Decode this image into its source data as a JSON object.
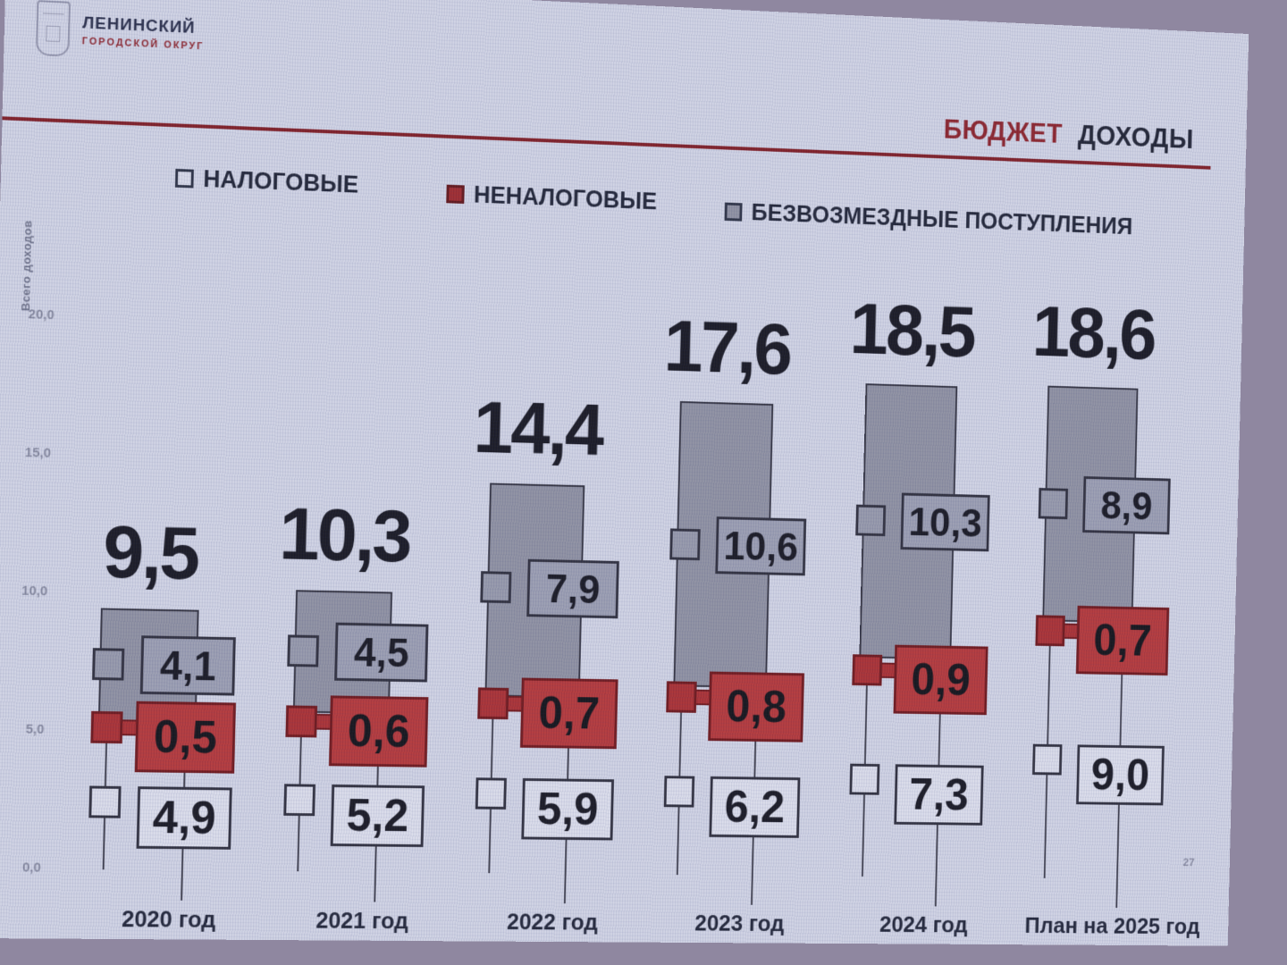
{
  "header": {
    "logo": {
      "line1": "ЛЕНИНСКИЙ",
      "line2": "ГОРОДСКОЙ ОКРУГ"
    },
    "title_accent": "БЮДЖЕТ",
    "title_main": "ДОХОДЫ"
  },
  "legend": {
    "items": [
      {
        "label": "НАЛОГОВЫЕ",
        "swatch": "white-outline-square"
      },
      {
        "label": "НЕНАЛОГОВЫЕ",
        "swatch": "red-square"
      },
      {
        "label": "БЕЗВОЗМЕЗДНЫЕ ПОСТУПЛЕНИЯ",
        "swatch": "gray-square"
      }
    ]
  },
  "y_axis": {
    "title": "Всего доходов",
    "ticks": [
      "20,0",
      "15,0",
      "10,0",
      "5,0",
      "0,0"
    ],
    "min": 0,
    "max": 20
  },
  "chart_data": {
    "type": "bar",
    "subtype": "stacked-column-with-value-callouts",
    "title": "БЮДЖЕТ ДОХОДЫ",
    "categories": [
      "2020 год",
      "2021 год",
      "2022 год",
      "2023 год",
      "2024 год",
      "План на 2025 год"
    ],
    "series": [
      {
        "name": "НАЛОГОВЫЕ",
        "color": "#dadcea",
        "values": [
          4.9,
          5.2,
          5.9,
          6.2,
          7.3,
          9.0
        ],
        "labels": [
          "4,9",
          "5,2",
          "5,9",
          "6,2",
          "7,3",
          "9,0"
        ]
      },
      {
        "name": "НЕНАЛОГОВЫЕ",
        "color": "#b23537",
        "values": [
          0.5,
          0.6,
          0.7,
          0.8,
          0.9,
          0.7
        ],
        "labels": [
          "0,5",
          "0,6",
          "0,7",
          "0,8",
          "0,9",
          "0,7"
        ]
      },
      {
        "name": "БЕЗВОЗМЕЗДНЫЕ ПОСТУПЛЕНИЯ",
        "color": "#8d8fa0",
        "values": [
          4.1,
          4.5,
          7.9,
          10.6,
          10.3,
          8.9
        ],
        "labels": [
          "4,1",
          "4,5",
          "7,9",
          "10,6",
          "10,3",
          "8,9"
        ]
      }
    ],
    "totals": [
      9.5,
      10.3,
      14.4,
      17.6,
      18.5,
      18.6
    ],
    "total_labels": [
      "9,5",
      "10,3",
      "14,4",
      "17,6",
      "18,5",
      "18,6"
    ],
    "ylim": [
      0,
      20
    ],
    "ylabel": "Всего доходов",
    "legend_position": "top",
    "grid": false
  },
  "footer": {
    "page_number": "27"
  },
  "colors": {
    "accent_red": "#8a2028",
    "box_red": "#b23537",
    "bar_gray": "#8d8fa0",
    "slide_bg": "#cfd2e3",
    "text_dark": "#1d2133"
  }
}
